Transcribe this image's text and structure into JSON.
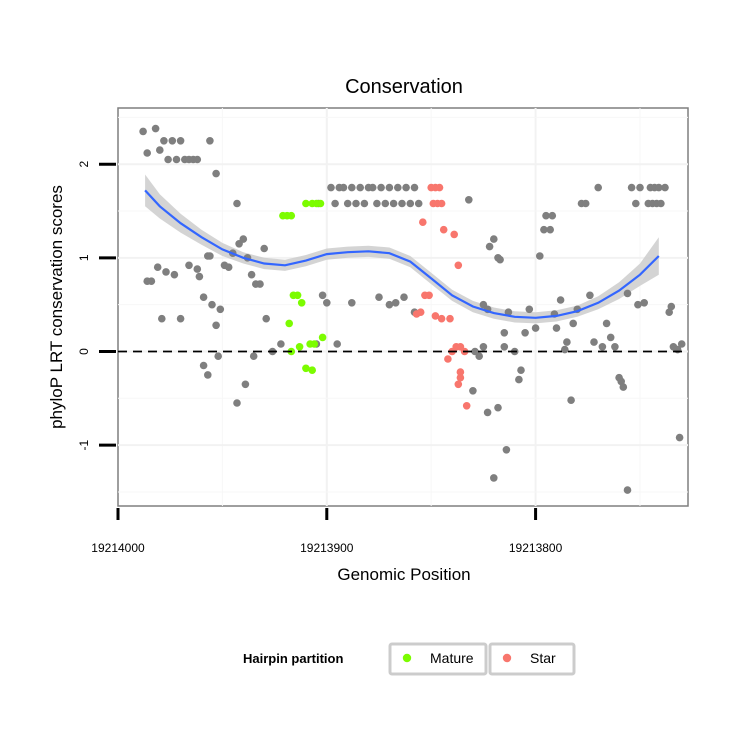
{
  "chart_data": {
    "type": "scatter",
    "title": "Conservation",
    "xlabel": "Genomic Position",
    "ylabel": "phyloP LRT conservation scores",
    "x_reversed": true,
    "xlim": [
      19214000,
      19213727
    ],
    "ylim": [
      -1.65,
      2.6
    ],
    "x_ticks": [
      19214000,
      19213900,
      19213800
    ],
    "x_tick_labels": [
      "19214000",
      "19213900",
      "19213800"
    ],
    "y_ticks": [
      -1,
      0,
      1,
      2
    ],
    "y_tick_labels": [
      "-1",
      "0",
      "1",
      "2"
    ],
    "grid": true,
    "reference_line": {
      "y": 0,
      "style": "dashed"
    },
    "legend": {
      "title": "Hairpin partition",
      "position": "bottom",
      "entries": [
        {
          "name": "Mature",
          "color": "#7cfc00"
        },
        {
          "name": "Star",
          "color": "#f8766d"
        }
      ]
    },
    "colors": {
      "background": "#7f7f7f",
      "Mature": "#7cfc00",
      "Star": "#f8766d",
      "smooth": "#3366ff",
      "band": "#cccccc"
    },
    "smooth": {
      "x": [
        19213987,
        19213980,
        19213970,
        19213960,
        19213950,
        19213940,
        19213930,
        19213920,
        19213910,
        19213900,
        19213890,
        19213880,
        19213870,
        19213860,
        19213850,
        19213840,
        19213830,
        19213820,
        19213810,
        19213800,
        19213790,
        19213780,
        19213770,
        19213760,
        19213750,
        19213741
      ],
      "y": [
        1.72,
        1.55,
        1.37,
        1.22,
        1.09,
        1.0,
        0.94,
        0.92,
        0.97,
        1.04,
        1.06,
        1.07,
        1.05,
        0.96,
        0.78,
        0.6,
        0.48,
        0.41,
        0.37,
        0.36,
        0.38,
        0.43,
        0.52,
        0.65,
        0.82,
        1.02
      ],
      "lower": [
        1.55,
        1.42,
        1.27,
        1.14,
        1.02,
        0.94,
        0.88,
        0.86,
        0.91,
        0.98,
        1.0,
        1.01,
        0.99,
        0.9,
        0.72,
        0.54,
        0.42,
        0.35,
        0.31,
        0.3,
        0.32,
        0.37,
        0.45,
        0.56,
        0.7,
        0.82
      ],
      "upper": [
        1.89,
        1.68,
        1.47,
        1.3,
        1.16,
        1.06,
        1.0,
        0.98,
        1.03,
        1.1,
        1.12,
        1.13,
        1.11,
        1.02,
        0.84,
        0.66,
        0.54,
        0.47,
        0.43,
        0.42,
        0.44,
        0.49,
        0.59,
        0.74,
        0.94,
        1.22
      ]
    },
    "series": [
      {
        "name": "",
        "color": "#7f7f7f",
        "points": [
          [
            19213988,
            2.35
          ],
          [
            19213986,
            2.12
          ],
          [
            19213982,
            2.38
          ],
          [
            19213980,
            2.15
          ],
          [
            19213978,
            2.25
          ],
          [
            19213976,
            2.05
          ],
          [
            19213974,
            2.25
          ],
          [
            19213972,
            2.05
          ],
          [
            19213970,
            2.25
          ],
          [
            19213968,
            2.05
          ],
          [
            19213966,
            2.05
          ],
          [
            19213964,
            2.05
          ],
          [
            19213962,
            2.05
          ],
          [
            19213956,
            2.25
          ],
          [
            19213953,
            1.9
          ],
          [
            19213986,
            0.75
          ],
          [
            19213984,
            0.75
          ],
          [
            19213981,
            0.9
          ],
          [
            19213979,
            0.35
          ],
          [
            19213977,
            0.85
          ],
          [
            19213973,
            0.82
          ],
          [
            19213970,
            0.35
          ],
          [
            19213966,
            0.92
          ],
          [
            19213962,
            0.88
          ],
          [
            19213961,
            0.8
          ],
          [
            19213959,
            0.58
          ],
          [
            19213957,
            1.02
          ],
          [
            19213956,
            1.02
          ],
          [
            19213955,
            0.5
          ],
          [
            19213953,
            0.28
          ],
          [
            19213951,
            0.45
          ],
          [
            19213949,
            0.92
          ],
          [
            19213947,
            0.9
          ],
          [
            19213945,
            1.05
          ],
          [
            19213942,
            1.15
          ],
          [
            19213940,
            1.2
          ],
          [
            19213938,
            1.0
          ],
          [
            19213936,
            0.82
          ],
          [
            19213934,
            0.72
          ],
          [
            19213932,
            0.72
          ],
          [
            19213930,
            1.1
          ],
          [
            19213929,
            0.35
          ],
          [
            19213926,
            0.0
          ],
          [
            19213922,
            0.08
          ],
          [
            19213959,
            -0.15
          ],
          [
            19213957,
            -0.25
          ],
          [
            19213952,
            -0.05
          ],
          [
            19213943,
            -0.55
          ],
          [
            19213939,
            -0.35
          ],
          [
            19213935,
            -0.05
          ],
          [
            19213943,
            1.58
          ],
          [
            19213904,
            1.58
          ],
          [
            19213902,
            0.6
          ],
          [
            19213900,
            0.52
          ],
          [
            19213898,
            1.75
          ],
          [
            19213896,
            1.58
          ],
          [
            19213894,
            1.75
          ],
          [
            19213892,
            1.75
          ],
          [
            19213890,
            1.58
          ],
          [
            19213888,
            1.75
          ],
          [
            19213886,
            1.58
          ],
          [
            19213884,
            1.75
          ],
          [
            19213882,
            1.58
          ],
          [
            19213880,
            1.75
          ],
          [
            19213878,
            1.75
          ],
          [
            19213876,
            1.58
          ],
          [
            19213874,
            1.75
          ],
          [
            19213872,
            1.58
          ],
          [
            19213870,
            1.75
          ],
          [
            19213868,
            1.58
          ],
          [
            19213866,
            1.75
          ],
          [
            19213864,
            1.58
          ],
          [
            19213862,
            1.75
          ],
          [
            19213860,
            1.58
          ],
          [
            19213858,
            1.75
          ],
          [
            19213856,
            1.58
          ],
          [
            19213905,
            0.08
          ],
          [
            19213895,
            0.08
          ],
          [
            19213888,
            0.52
          ],
          [
            19213875,
            0.58
          ],
          [
            19213870,
            0.5
          ],
          [
            19213867,
            0.52
          ],
          [
            19213863,
            0.58
          ],
          [
            19213858,
            0.42
          ],
          [
            19213832,
            1.62
          ],
          [
            19213825,
            0.5
          ],
          [
            19213823,
            0.45
          ],
          [
            19213822,
            1.12
          ],
          [
            19213818,
            1.0
          ],
          [
            19213817,
            0.98
          ],
          [
            19213815,
            0.05
          ],
          [
            19213815,
            0.2
          ],
          [
            19213813,
            0.42
          ],
          [
            19213820,
            1.2
          ],
          [
            19213825,
            0.05
          ],
          [
            19213827,
            -0.05
          ],
          [
            19213829,
            0.0
          ],
          [
            19213830,
            -0.42
          ],
          [
            19213823,
            -0.65
          ],
          [
            19213818,
            -0.6
          ],
          [
            19213820,
            -1.35
          ],
          [
            19213814,
            -1.05
          ],
          [
            19213810,
            0.0
          ],
          [
            19213808,
            -0.3
          ],
          [
            19213807,
            -0.2
          ],
          [
            19213805,
            0.2
          ],
          [
            19213803,
            0.45
          ],
          [
            19213800,
            0.25
          ],
          [
            19213798,
            1.02
          ],
          [
            19213796,
            1.3
          ],
          [
            19213795,
            1.45
          ],
          [
            19213793,
            1.3
          ],
          [
            19213792,
            1.45
          ],
          [
            19213791,
            0.4
          ],
          [
            19213790,
            0.25
          ],
          [
            19213788,
            0.55
          ],
          [
            19213786,
            0.02
          ],
          [
            19213785,
            0.1
          ],
          [
            19213783,
            -0.52
          ],
          [
            19213782,
            0.3
          ],
          [
            19213780,
            0.45
          ],
          [
            19213778,
            1.58
          ],
          [
            19213776,
            1.58
          ],
          [
            19213774,
            0.6
          ],
          [
            19213772,
            0.1
          ],
          [
            19213770,
            1.75
          ],
          [
            19213768,
            0.05
          ],
          [
            19213766,
            0.3
          ],
          [
            19213764,
            0.15
          ],
          [
            19213762,
            0.05
          ],
          [
            19213760,
            -0.28
          ],
          [
            19213759,
            -0.32
          ],
          [
            19213758,
            -0.38
          ],
          [
            19213756,
            -1.48
          ],
          [
            19213756,
            0.62
          ],
          [
            19213754,
            1.75
          ],
          [
            19213752,
            1.58
          ],
          [
            19213751,
            0.5
          ],
          [
            19213750,
            1.75
          ],
          [
            19213748,
            0.52
          ],
          [
            19213746,
            1.58
          ],
          [
            19213745,
            1.75
          ],
          [
            19213744,
            1.58
          ],
          [
            19213743,
            1.75
          ],
          [
            19213742,
            1.58
          ],
          [
            19213741,
            1.75
          ],
          [
            19213740,
            1.58
          ],
          [
            19213738,
            1.75
          ],
          [
            19213736,
            0.42
          ],
          [
            19213735,
            0.48
          ],
          [
            19213734,
            0.05
          ],
          [
            19213732,
            0.02
          ],
          [
            19213731,
            -0.92
          ],
          [
            19213730,
            0.08
          ]
        ]
      },
      {
        "name": "Mature",
        "color": "#7cfc00",
        "points": [
          [
            19213921,
            1.45
          ],
          [
            19213919,
            1.45
          ],
          [
            19213917,
            1.45
          ],
          [
            19213910,
            1.58
          ],
          [
            19213907,
            1.58
          ],
          [
            19213905,
            1.58
          ],
          [
            19213903,
            1.58
          ],
          [
            19213916,
            0.6
          ],
          [
            19213914,
            0.6
          ],
          [
            19213912,
            0.52
          ],
          [
            19213918,
            0.3
          ],
          [
            19213917,
            0.0
          ],
          [
            19213913,
            0.05
          ],
          [
            19213908,
            0.08
          ],
          [
            19213906,
            0.08
          ],
          [
            19213902,
            0.15
          ],
          [
            19213910,
            -0.18
          ],
          [
            19213907,
            -0.2
          ]
        ]
      },
      {
        "name": "Star",
        "color": "#f8766d",
        "points": [
          [
            19213850,
            1.75
          ],
          [
            19213848,
            1.75
          ],
          [
            19213846,
            1.75
          ],
          [
            19213849,
            1.58
          ],
          [
            19213847,
            1.58
          ],
          [
            19213845,
            1.58
          ],
          [
            19213854,
            1.38
          ],
          [
            19213844,
            1.3
          ],
          [
            19213839,
            1.25
          ],
          [
            19213837,
            0.92
          ],
          [
            19213853,
            0.6
          ],
          [
            19213851,
            0.6
          ],
          [
            19213855,
            0.42
          ],
          [
            19213857,
            0.4
          ],
          [
            19213848,
            0.38
          ],
          [
            19213841,
            0.35
          ],
          [
            19213845,
            0.35
          ],
          [
            19213838,
            0.05
          ],
          [
            19213836,
            0.05
          ],
          [
            19213834,
            0.0
          ],
          [
            19213840,
            0.0
          ],
          [
            19213842,
            -0.08
          ],
          [
            19213836,
            -0.22
          ],
          [
            19213836,
            -0.28
          ],
          [
            19213837,
            -0.35
          ],
          [
            19213833,
            -0.58
          ]
        ]
      }
    ]
  }
}
